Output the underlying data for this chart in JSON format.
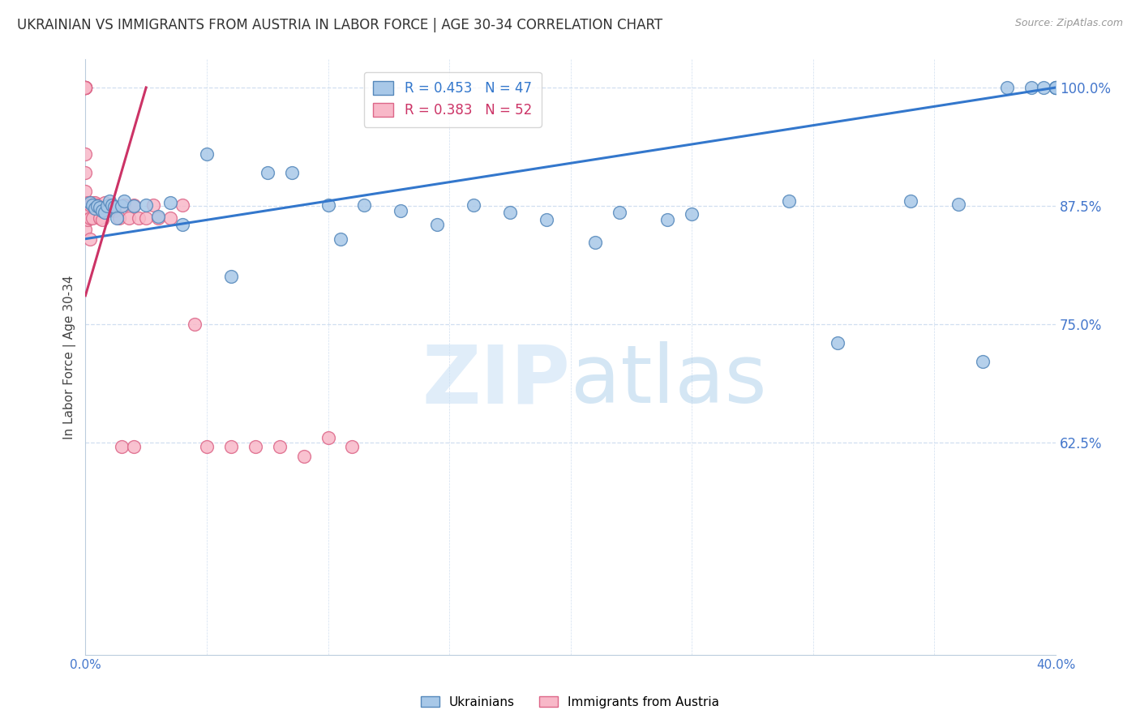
{
  "title": "UKRAINIAN VS IMMIGRANTS FROM AUSTRIA IN LABOR FORCE | AGE 30-34 CORRELATION CHART",
  "source": "Source: ZipAtlas.com",
  "ylabel": "In Labor Force | Age 30-34",
  "xlim": [
    0.0,
    0.4
  ],
  "ylim": [
    0.4,
    1.03
  ],
  "yticks": [
    0.625,
    0.75,
    0.875,
    1.0
  ],
  "ytick_labels": [
    "62.5%",
    "75.0%",
    "87.5%",
    "100.0%"
  ],
  "xticks": [
    0.0,
    0.05,
    0.1,
    0.15,
    0.2,
    0.25,
    0.3,
    0.35,
    0.4
  ],
  "xtick_labels": [
    "0.0%",
    "",
    "",
    "",
    "",
    "",
    "",
    "",
    "40.0%"
  ],
  "blue_color": "#a8c8e8",
  "pink_color": "#f8b8c8",
  "blue_edge": "#5588bb",
  "pink_edge": "#dd6688",
  "trend_blue": "#3377cc",
  "trend_pink": "#cc3366",
  "legend_blue_R": "R = 0.453",
  "legend_blue_N": "N = 47",
  "legend_pink_R": "R = 0.383",
  "legend_pink_N": "N = 52",
  "ukrainians_x": [
    0.002,
    0.003,
    0.004,
    0.005,
    0.006,
    0.007,
    0.008,
    0.009,
    0.01,
    0.011,
    0.012,
    0.013,
    0.015,
    0.016,
    0.02,
    0.025,
    0.03,
    0.035,
    0.04,
    0.05,
    0.06,
    0.075,
    0.085,
    0.1,
    0.105,
    0.115,
    0.13,
    0.145,
    0.16,
    0.175,
    0.19,
    0.21,
    0.22,
    0.24,
    0.25,
    0.29,
    0.31,
    0.34,
    0.36,
    0.37,
    0.38,
    0.39,
    0.395,
    0.4,
    0.4,
    0.4,
    0.4
  ],
  "ukrainians_y": [
    0.878,
    0.876,
    0.872,
    0.875,
    0.873,
    0.87,
    0.868,
    0.875,
    0.88,
    0.876,
    0.874,
    0.862,
    0.875,
    0.88,
    0.875,
    0.876,
    0.864,
    0.878,
    0.855,
    0.93,
    0.8,
    0.91,
    0.91,
    0.876,
    0.84,
    0.876,
    0.87,
    0.855,
    0.876,
    0.868,
    0.86,
    0.836,
    0.868,
    0.86,
    0.866,
    0.88,
    0.73,
    0.88,
    0.877,
    0.71,
    1.0,
    1.0,
    1.0,
    1.0,
    1.0,
    1.0,
    1.0
  ],
  "austria_x": [
    0.0,
    0.0,
    0.0,
    0.0,
    0.0,
    0.0,
    0.0,
    0.0,
    0.0,
    0.0,
    0.0,
    0.0,
    0.0,
    0.0,
    0.0,
    0.0,
    0.0,
    0.0,
    0.001,
    0.001,
    0.002,
    0.002,
    0.002,
    0.003,
    0.003,
    0.004,
    0.005,
    0.006,
    0.007,
    0.008,
    0.01,
    0.012,
    0.014,
    0.016,
    0.018,
    0.02,
    0.022,
    0.025,
    0.028,
    0.03,
    0.035,
    0.04,
    0.045,
    0.05,
    0.06,
    0.07,
    0.08,
    0.09,
    0.1,
    0.11,
    0.015,
    0.02
  ],
  "austria_y": [
    1.0,
    1.0,
    1.0,
    1.0,
    1.0,
    1.0,
    1.0,
    1.0,
    1.0,
    1.0,
    1.0,
    1.0,
    1.0,
    0.93,
    0.91,
    0.89,
    0.87,
    0.85,
    0.878,
    0.86,
    0.876,
    0.862,
    0.84,
    0.878,
    0.862,
    0.878,
    0.876,
    0.862,
    0.86,
    0.878,
    0.876,
    0.87,
    0.862,
    0.876,
    0.862,
    0.876,
    0.862,
    0.862,
    0.876,
    0.862,
    0.862,
    0.876,
    0.75,
    0.62,
    0.62,
    0.62,
    0.62,
    0.61,
    0.63,
    0.62,
    0.62,
    0.62
  ],
  "watermark_zip": "ZIP",
  "watermark_atlas": "atlas",
  "background_color": "#ffffff",
  "axis_color": "#4477cc",
  "grid_color": "#d0dff0",
  "title_color": "#333333",
  "title_fontsize": 12,
  "label_fontsize": 11
}
